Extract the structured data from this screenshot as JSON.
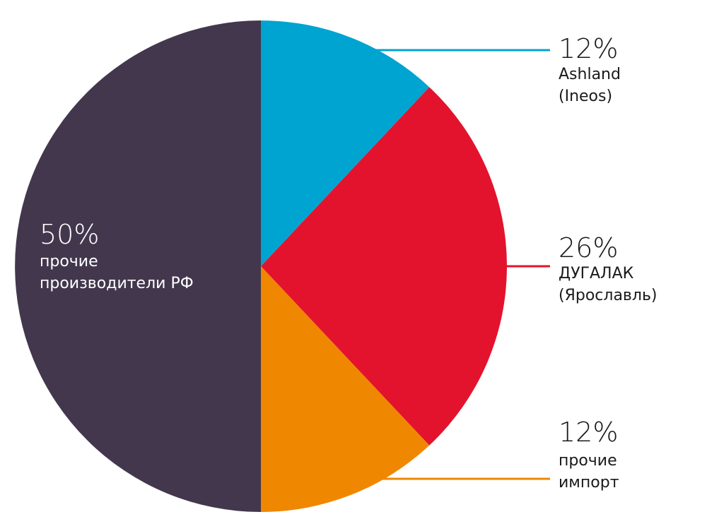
{
  "chart_data": {
    "type": "pie",
    "slices": [
      {
        "label_lines": [
          "Ashland",
          "(Ineos)"
        ],
        "value": 12,
        "value_text": "12%",
        "color": "#00a4d0"
      },
      {
        "label_lines": [
          "ДУГАЛАК",
          "(Ярославль)"
        ],
        "value": 26,
        "value_text": "26%",
        "color": "#e3132d"
      },
      {
        "label_lines": [
          "прочие",
          "импорт"
        ],
        "value": 12,
        "value_text": "12%",
        "color": "#ef8700"
      },
      {
        "label_lines": [
          "прочие",
          "производители РФ"
        ],
        "value": 50,
        "value_text": "50%",
        "color": "#43374d"
      }
    ],
    "start_angle": "12 o'clock",
    "direction": "clockwise",
    "label_color_outside": "#1a1a1a",
    "label_color_inside": "#ffffff"
  }
}
